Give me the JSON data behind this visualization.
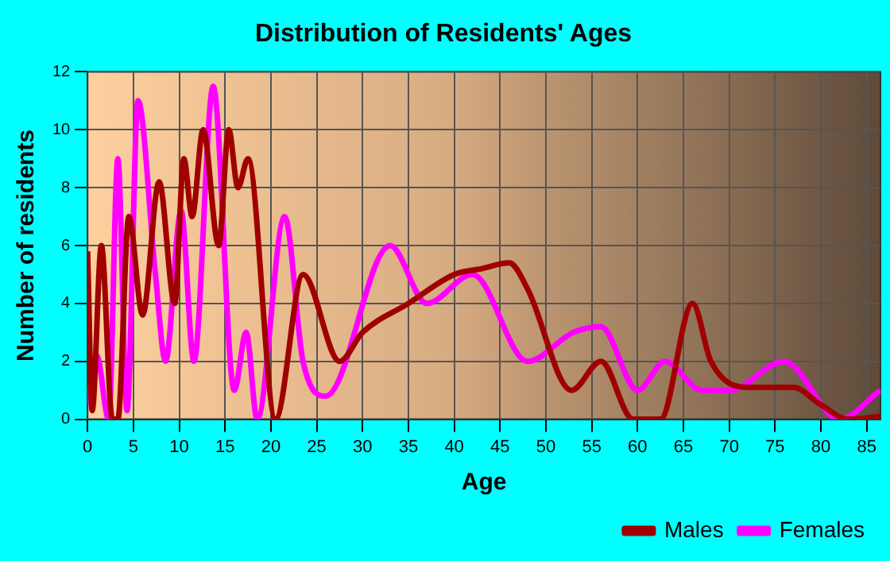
{
  "chart_data": {
    "type": "line",
    "title": "Distribution of Residents' Ages",
    "xlabel": "Age",
    "ylabel": "Number of residents",
    "xlim": [
      0,
      86.5
    ],
    "xticks": [
      0,
      5,
      10,
      15,
      20,
      25,
      30,
      35,
      40,
      45,
      50,
      55,
      60,
      65,
      70,
      75,
      80,
      85
    ],
    "ylim": [
      0,
      12
    ],
    "yticks": [
      0,
      2,
      4,
      6,
      8,
      10,
      12
    ],
    "grid": true,
    "legend": "bottom right",
    "marker": "none",
    "line_style": "solid",
    "series": [
      {
        "name": "Males",
        "color": "#a00000",
        "x": [
          0,
          0.5,
          1.5,
          2.7,
          3.3,
          4.5,
          6,
          7.8,
          9.5,
          10.5,
          11.4,
          12.6,
          14.3,
          15.4,
          16.4,
          17.5,
          20.5,
          23.5,
          27.5,
          30,
          35,
          40,
          43,
          46,
          48,
          52.8,
          56,
          59.5,
          62.5,
          66,
          68,
          72,
          77,
          80,
          83,
          86.5
        ],
        "values": [
          5.8,
          0.3,
          6,
          0,
          0,
          7,
          3.6,
          8.2,
          4,
          9,
          7,
          10,
          6,
          10,
          8,
          9,
          0,
          5,
          2,
          3,
          4,
          5,
          5.2,
          5.4,
          4.5,
          1,
          2,
          0,
          0,
          4,
          2,
          1.1,
          1.1,
          0.5,
          0,
          0.1
        ]
      },
      {
        "name": "Females",
        "color": "#ff00ff",
        "x": [
          0,
          1,
          2.3,
          3.3,
          4.3,
          5.5,
          7.4,
          8.5,
          10.2,
          11.6,
          13.7,
          16,
          17.3,
          18.5,
          21.5,
          23.5,
          26,
          33,
          37,
          42,
          48,
          53,
          56,
          60,
          63,
          67,
          70,
          76,
          82,
          86.5
        ],
        "values": [
          0.5,
          2.2,
          0,
          9,
          0.3,
          11,
          5,
          2,
          7.2,
          2,
          11.5,
          1,
          3,
          0,
          7,
          2,
          0.8,
          6,
          4,
          5,
          2,
          3,
          3.2,
          1,
          2,
          1,
          1,
          2,
          0,
          1
        ]
      }
    ]
  }
}
